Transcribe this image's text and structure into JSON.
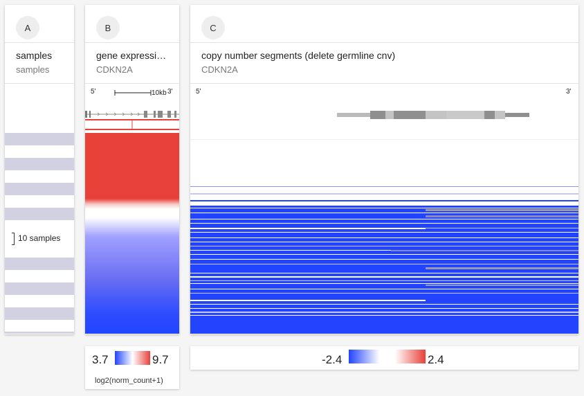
{
  "columns": {
    "a": {
      "badge": "A",
      "title": "samples",
      "subtitle": "samples",
      "sample_count_label": "10 samples"
    },
    "b": {
      "badge": "B",
      "title": "gene expressi…",
      "subtitle": "CDKN2A",
      "five_prime": "5'",
      "three_prime": "3'",
      "scale_label": "10kb"
    },
    "c": {
      "badge": "C",
      "title": "copy number segments (delete germline cnv)",
      "subtitle": "CDKN2A",
      "five_prime": "5'",
      "three_prime": "3'"
    }
  },
  "legends": {
    "expression": {
      "min": "3.7",
      "max": "9.7",
      "unit": "log2(norm_count+1)"
    },
    "copy_number": {
      "min": "-2.4",
      "max": "2.4"
    }
  },
  "colors": {
    "high": "#e8413a",
    "low": "#2244ff",
    "stripe": "#d1d1e1",
    "neutral": "#ffffff"
  }
}
